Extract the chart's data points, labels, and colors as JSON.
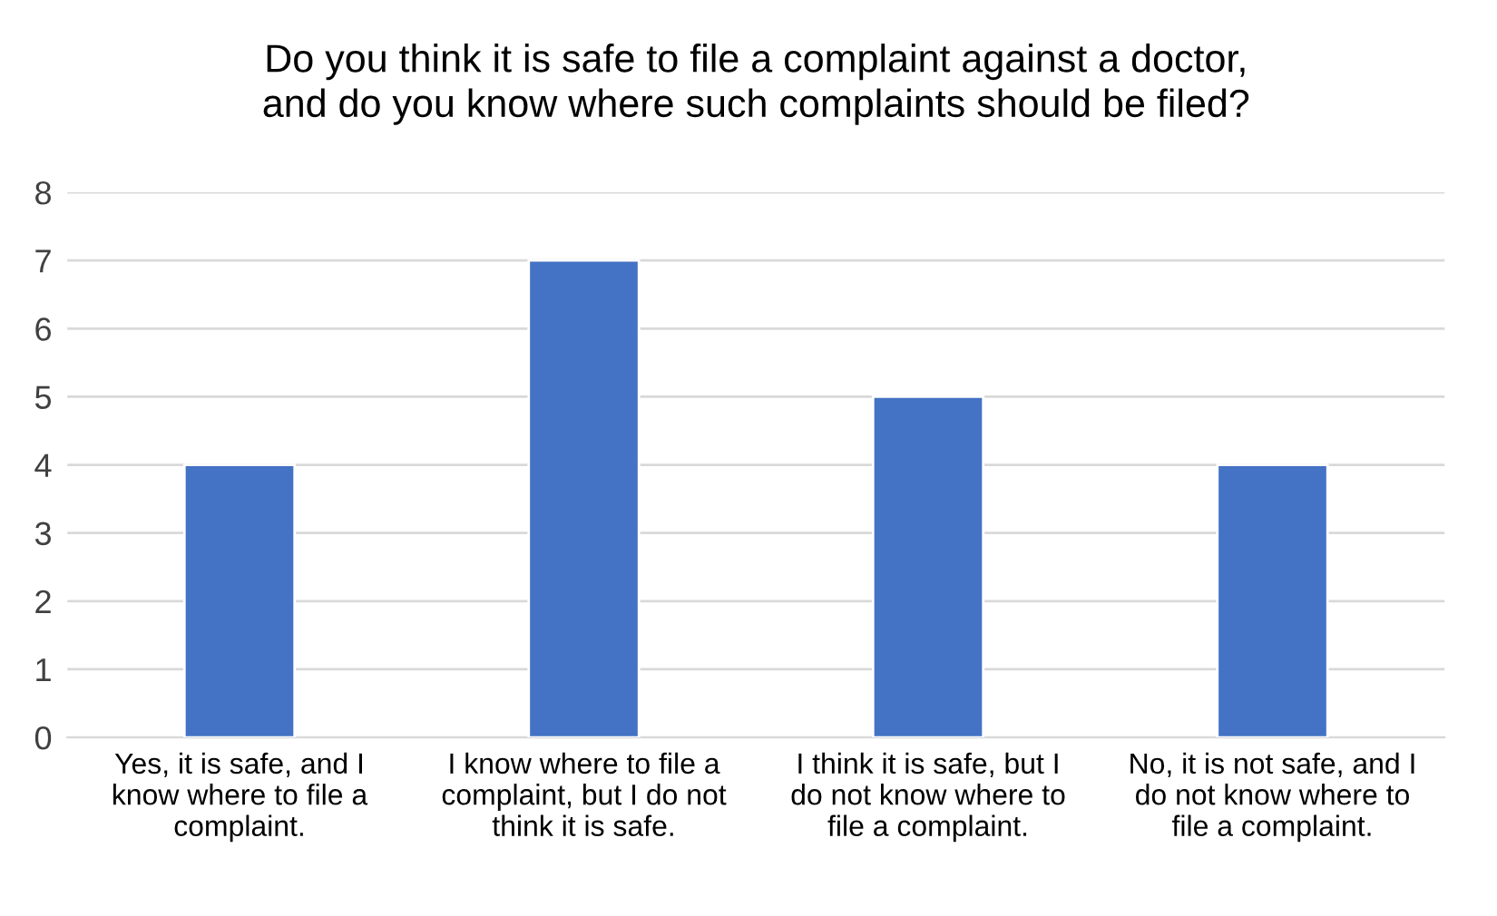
{
  "chart_data": {
    "type": "bar",
    "title": "Do you think it is safe to file a complaint against a doctor,\nand do you know where such complaints should be filed?",
    "categories": [
      "Yes, it is safe, and I\nknow where to file a\ncomplaint.",
      "I know where to file a\ncomplaint, but I do not\nthink it is safe.",
      "I think it is safe, but I\ndo not know where to\nfile a complaint.",
      "No, it is not safe, and I\ndo not know where to\nfile a complaint."
    ],
    "values": [
      4,
      7,
      5,
      4
    ],
    "color": "#4472c4",
    "ylim": [
      0,
      8
    ],
    "yticks": [
      0,
      1,
      2,
      3,
      4,
      5,
      6,
      7,
      8
    ],
    "grid": "y"
  }
}
